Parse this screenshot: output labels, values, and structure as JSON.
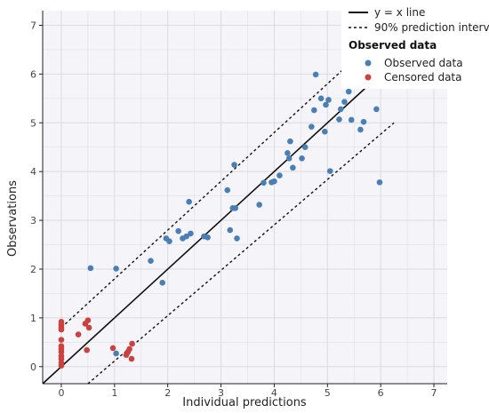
{
  "chart_data": {
    "type": "scatter",
    "xlabel": "Individual predictions",
    "ylabel": "Observations",
    "xlim": [
      -0.35,
      7.25
    ],
    "ylim": [
      -0.35,
      7.3
    ],
    "x_ticks": [
      0,
      1,
      2,
      3,
      4,
      5,
      6,
      7
    ],
    "y_ticks": [
      0,
      1,
      2,
      3,
      4,
      5,
      6,
      7
    ],
    "grid": true,
    "legend_placement": "top-right",
    "lines": [
      {
        "name": "y = x line",
        "style": "solid",
        "color": "#111111",
        "x": [
          -0.35,
          5.8
        ],
        "y": [
          -0.35,
          5.8
        ]
      },
      {
        "name": "90% prediction interv",
        "style": "dotted",
        "color": "#111111",
        "x": [
          0.0,
          5.3
        ],
        "y": [
          0.8,
          6.1
        ]
      },
      {
        "name": "",
        "style": "dotted",
        "color": "#111111",
        "x": [
          0.5,
          6.25
        ],
        "y": [
          -0.35,
          5.0
        ]
      }
    ],
    "legend_title": "Observed data",
    "series": [
      {
        "name": "Observed data",
        "color": "#4a7fb5",
        "points": [
          [
            0.55,
            2.02
          ],
          [
            1.03,
            2.01
          ],
          [
            1.03,
            0.27
          ],
          [
            1.68,
            2.17
          ],
          [
            1.9,
            1.72
          ],
          [
            1.97,
            2.63
          ],
          [
            2.03,
            2.57
          ],
          [
            2.2,
            2.78
          ],
          [
            2.28,
            2.63
          ],
          [
            2.35,
            2.67
          ],
          [
            2.4,
            3.38
          ],
          [
            2.43,
            2.73
          ],
          [
            2.68,
            2.67
          ],
          [
            2.75,
            2.65
          ],
          [
            3.12,
            3.62
          ],
          [
            3.17,
            2.8
          ],
          [
            3.22,
            3.25
          ],
          [
            3.25,
            4.14
          ],
          [
            3.27,
            3.25
          ],
          [
            3.3,
            2.63
          ],
          [
            3.72,
            3.32
          ],
          [
            3.8,
            3.77
          ],
          [
            3.95,
            3.78
          ],
          [
            4.0,
            3.8
          ],
          [
            4.1,
            3.92
          ],
          [
            4.25,
            4.38
          ],
          [
            4.28,
            4.27
          ],
          [
            4.3,
            4.62
          ],
          [
            4.35,
            4.08
          ],
          [
            4.52,
            4.27
          ],
          [
            4.58,
            4.5
          ],
          [
            4.7,
            4.92
          ],
          [
            4.75,
            5.26
          ],
          [
            4.78,
            5.99
          ],
          [
            4.88,
            5.5
          ],
          [
            4.95,
            4.82
          ],
          [
            4.97,
            5.37
          ],
          [
            5.02,
            5.47
          ],
          [
            5.05,
            4.01
          ],
          [
            5.22,
            5.07
          ],
          [
            5.25,
            5.28
          ],
          [
            5.32,
            5.43
          ],
          [
            5.4,
            5.64
          ],
          [
            5.45,
            5.06
          ],
          [
            5.62,
            4.86
          ],
          [
            5.68,
            5.02
          ],
          [
            5.92,
            5.28
          ],
          [
            5.98,
            3.78
          ]
        ]
      },
      {
        "name": "Censored data",
        "color": "#cc4040",
        "points": [
          [
            0.0,
            0.92
          ],
          [
            0.0,
            0.86
          ],
          [
            0.0,
            0.8
          ],
          [
            0.0,
            0.76
          ],
          [
            0.0,
            0.55
          ],
          [
            0.0,
            0.42
          ],
          [
            0.0,
            0.36
          ],
          [
            0.0,
            0.3
          ],
          [
            0.0,
            0.22
          ],
          [
            0.0,
            0.16
          ],
          [
            0.0,
            0.08
          ],
          [
            0.0,
            0.02
          ],
          [
            0.32,
            0.66
          ],
          [
            0.45,
            0.88
          ],
          [
            0.5,
            0.95
          ],
          [
            0.52,
            0.8
          ],
          [
            0.48,
            0.34
          ],
          [
            0.97,
            0.38
          ],
          [
            1.22,
            0.24
          ],
          [
            1.25,
            0.3
          ],
          [
            1.28,
            0.36
          ],
          [
            1.32,
            0.16
          ],
          [
            1.33,
            0.47
          ]
        ]
      }
    ]
  },
  "colors": {
    "panel_background": "#f5f4f8",
    "grid": "#dcdbe0",
    "axis": "#222222"
  }
}
